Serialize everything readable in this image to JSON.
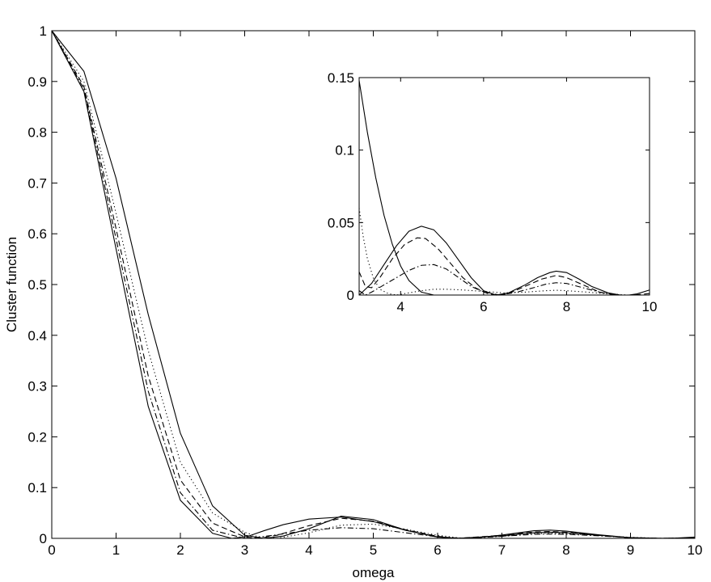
{
  "chart_data": [
    {
      "id": "main",
      "type": "line",
      "title": "",
      "xlabel": "omega",
      "ylabel": "Cluster function",
      "xlim": [
        0,
        10
      ],
      "ylim": [
        0,
        1
      ],
      "xticks": [
        0,
        1,
        2,
        3,
        4,
        5,
        6,
        7,
        8,
        9,
        10
      ],
      "yticks": [
        0,
        0.1,
        0.2,
        0.3,
        0.4,
        0.5,
        0.6,
        0.7,
        0.8,
        0.9,
        1
      ],
      "ytick_labels": [
        "0",
        "0.1",
        "0.2",
        "0.3",
        "0.4",
        "0.5",
        "0.6",
        "0.7",
        "0.8",
        "0.9",
        "1"
      ],
      "grid": false,
      "legend": "none",
      "series": [
        {
          "linestyle": "solid",
          "x": [
            0,
            0.5,
            1,
            1.5,
            2,
            2.5,
            3,
            3.3,
            3.6,
            4,
            4.5,
            5,
            5.5,
            6,
            6.3,
            6.6,
            7,
            7.5,
            7.75,
            8,
            8.5,
            9,
            9.4,
            9.7,
            10
          ],
          "y": [
            1,
            0.92,
            0.709,
            0.441,
            0.207,
            0.064,
            0.0062,
            0.0,
            0.0045,
            0.019,
            0.0437,
            0.037,
            0.016,
            0.0024,
            0.0,
            0.0012,
            0.0065,
            0.015,
            0.0162,
            0.0143,
            0.0071,
            0.0012,
            0.0,
            0.0006,
            0.0025
          ]
        },
        {
          "linestyle": "dotted",
          "x": [
            0,
            0.5,
            1,
            1.5,
            2,
            2.5,
            3,
            3.2,
            3.5,
            4,
            4.5,
            5,
            5.5,
            6,
            6.4,
            7,
            7.5,
            7.75,
            8,
            8.5,
            9,
            9.5,
            10
          ],
          "y": [
            1,
            0.9,
            0.64,
            0.37,
            0.15,
            0.05,
            0.012,
            0.0035,
            0.0,
            0.011,
            0.026,
            0.028,
            0.018,
            0.006,
            0.0,
            0.004,
            0.009,
            0.01,
            0.009,
            0.006,
            0.002,
            0.0,
            0.001
          ]
        },
        {
          "linestyle": "dashed",
          "x": [
            0,
            0.5,
            1,
            1.5,
            2,
            2.5,
            3,
            3.2,
            3.5,
            4,
            4.5,
            5,
            5.5,
            6,
            6.3,
            7,
            7.5,
            7.75,
            8,
            8.5,
            9,
            9.5,
            10
          ],
          "y": [
            1,
            0.89,
            0.61,
            0.32,
            0.115,
            0.03,
            0.003,
            0.0,
            0.006,
            0.025,
            0.0395,
            0.034,
            0.017,
            0.004,
            0.0,
            0.006,
            0.0125,
            0.0135,
            0.012,
            0.006,
            0.001,
            0.0,
            0.001
          ]
        },
        {
          "linestyle": "dashdot",
          "x": [
            0,
            0.5,
            1,
            1.5,
            2,
            2.5,
            3,
            3.2,
            3.5,
            4,
            4.5,
            5,
            5.5,
            6,
            6.4,
            7,
            7.5,
            7.75,
            8,
            8.5,
            9,
            9.5,
            10
          ],
          "y": [
            1,
            0.885,
            0.59,
            0.29,
            0.09,
            0.016,
            0.0,
            0.002,
            0.007,
            0.016,
            0.021,
            0.019,
            0.011,
            0.003,
            0.0,
            0.004,
            0.008,
            0.0085,
            0.008,
            0.005,
            0.0015,
            0.0,
            0.001
          ]
        },
        {
          "linestyle": "solid",
          "x": [
            0,
            0.5,
            1,
            1.5,
            2,
            2.5,
            2.8,
            3.05,
            3.3,
            3.6,
            4,
            4.5,
            5,
            5.5,
            6,
            6.3,
            7,
            7.5,
            7.75,
            8,
            8.5,
            9,
            9.5,
            10
          ],
          "y": [
            1,
            0.88,
            0.57,
            0.26,
            0.075,
            0.01,
            0.0,
            0.004,
            0.015,
            0.027,
            0.038,
            0.042,
            0.033,
            0.016,
            0.003,
            0.0,
            0.005,
            0.011,
            0.012,
            0.011,
            0.006,
            0.0015,
            0.0,
            0.001
          ]
        }
      ]
    },
    {
      "id": "inset",
      "type": "line",
      "title": "",
      "xlabel": "",
      "ylabel": "",
      "xlim": [
        3,
        10
      ],
      "ylim": [
        0,
        0.15
      ],
      "xticks": [
        4,
        6,
        8,
        10
      ],
      "yticks": [
        0,
        0.05,
        0.1,
        0.15
      ],
      "ytick_labels": [
        "0",
        "0.05",
        "0.1",
        "0.15"
      ],
      "grid": false,
      "legend": "none",
      "series": [
        {
          "linestyle": "solid",
          "x": [
            3,
            3.3,
            3.6,
            3.9,
            4.2,
            4.5,
            4.8,
            5.1,
            5.4,
            5.7,
            6,
            6.3,
            6.6,
            7,
            7.3,
            7.6,
            7.75,
            8,
            8.3,
            8.6,
            9,
            9.3,
            9.5,
            9.7,
            10
          ],
          "y": [
            0.0,
            0.008,
            0.021,
            0.034,
            0.044,
            0.0475,
            0.045,
            0.036,
            0.024,
            0.012,
            0.003,
            0.0,
            0.0015,
            0.007,
            0.012,
            0.0155,
            0.0165,
            0.0155,
            0.011,
            0.006,
            0.0015,
            0.0,
            0.0,
            0.0008,
            0.0035
          ]
        },
        {
          "linestyle": "solid",
          "x": [
            3,
            3.2,
            3.4,
            3.6,
            3.8,
            4,
            4.2,
            4.5,
            4.8,
            5.1,
            5.4,
            5.7,
            6,
            6.3,
            6.6,
            7,
            7.5,
            7.75,
            8,
            8.5,
            9,
            9.3,
            9.6,
            10
          ],
          "y": [
            0.148,
            0.112,
            0.081,
            0.055,
            0.035,
            0.02,
            0.01,
            0.002,
            0.0,
            0.0,
            0.0,
            0.0,
            0.0,
            0.0,
            0.0,
            0.0,
            0.0,
            0.0,
            0.0,
            0.0,
            0.0,
            0.0,
            0.0,
            0.0
          ]
        },
        {
          "linestyle": "dashed",
          "x": [
            3,
            3.15,
            3.3,
            3.5,
            3.8,
            4.1,
            4.4,
            4.6,
            4.9,
            5.2,
            5.5,
            5.8,
            6.1,
            6.35,
            6.6,
            7,
            7.4,
            7.75,
            8,
            8.4,
            8.8,
            9.2,
            9.6,
            10
          ],
          "y": [
            0.016,
            0.006,
            0.005,
            0.012,
            0.025,
            0.035,
            0.0395,
            0.039,
            0.032,
            0.022,
            0.012,
            0.005,
            0.001,
            0.0,
            0.001,
            0.006,
            0.011,
            0.0135,
            0.012,
            0.007,
            0.002,
            0.0,
            0.0,
            0.001
          ]
        },
        {
          "linestyle": "dashdot",
          "x": [
            3,
            3.15,
            3.3,
            3.6,
            3.9,
            4.2,
            4.5,
            4.8,
            5.1,
            5.4,
            5.7,
            6,
            6.4,
            6.8,
            7.2,
            7.5,
            7.75,
            8,
            8.4,
            8.8,
            9.2,
            9.6,
            10
          ],
          "y": [
            0.003,
            0.0,
            0.002,
            0.007,
            0.012,
            0.017,
            0.0205,
            0.021,
            0.018,
            0.012,
            0.006,
            0.002,
            0.0,
            0.002,
            0.005,
            0.0075,
            0.0085,
            0.008,
            0.005,
            0.002,
            0.0,
            0.0,
            0.0
          ]
        },
        {
          "linestyle": "dotted",
          "x": [
            3,
            3.1,
            3.2,
            3.35,
            3.5,
            3.7,
            3.9,
            4.2,
            4.5,
            4.8,
            5.1,
            5.5,
            6,
            6.5,
            7,
            7.5,
            7.75,
            8,
            8.5,
            9,
            9.5,
            10
          ],
          "y": [
            0.06,
            0.04,
            0.025,
            0.011,
            0.004,
            0.001,
            0.0,
            0.0015,
            0.003,
            0.004,
            0.004,
            0.0035,
            0.0025,
            0.0015,
            0.002,
            0.003,
            0.0033,
            0.003,
            0.002,
            0.0008,
            0.0,
            0.0
          ]
        }
      ]
    }
  ]
}
